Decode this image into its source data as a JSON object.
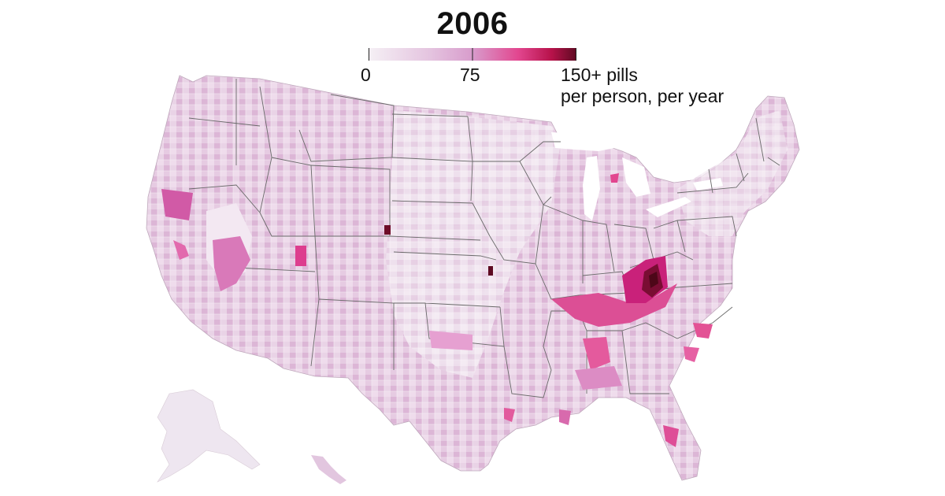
{
  "title": "2006",
  "legend": {
    "ticks": [
      "0",
      "75",
      "150+ pills"
    ],
    "unit": "per person, per year",
    "scale": [
      0,
      75,
      150
    ],
    "colors": [
      "#f5f0f5",
      "#e9cbe4",
      "#d79bcb",
      "#e2468f",
      "#b7124a",
      "#5e0a22"
    ]
  },
  "map": {
    "hotspot_level": 150,
    "base_fill": "#e7cde3",
    "border_color": "#6a6a6a"
  }
}
